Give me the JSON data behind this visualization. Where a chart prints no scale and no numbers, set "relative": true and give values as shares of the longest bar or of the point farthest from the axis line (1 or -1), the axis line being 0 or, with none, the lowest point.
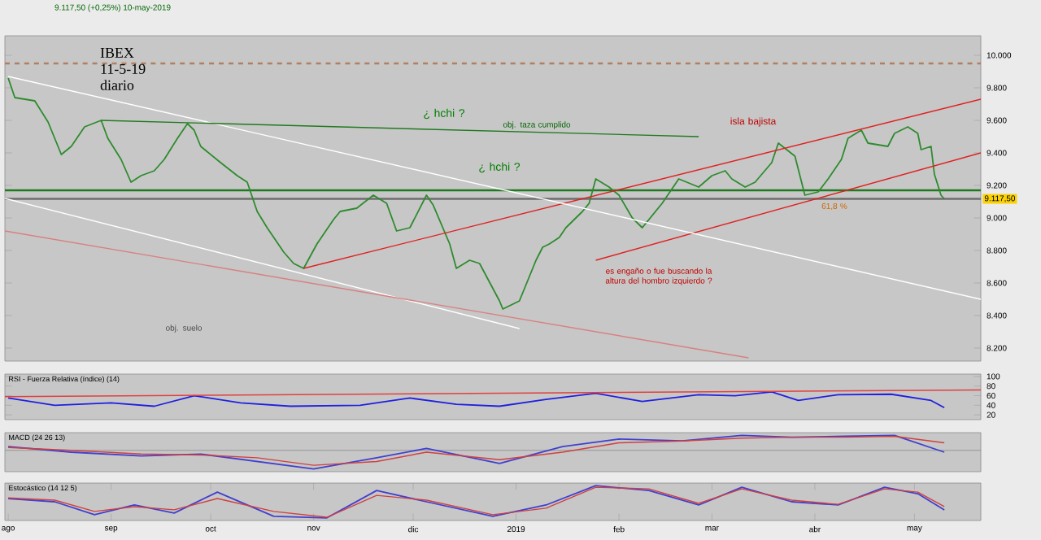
{
  "chart_data": [
    {
      "type": "line",
      "title": "IBEX",
      "subtitle": "11-5-19",
      "annotations": [
        "diario",
        "9.117,50 (+0,25%)  10-may-2019",
        "¿ hchi ?",
        "¿ hchi ?",
        "isla bajista",
        "obj. taza cumplido",
        "es engaño o fue buscando la altura del hombro izquierdo ?",
        "61,8 %",
        "obj. suelo"
      ],
      "x": [
        "2018-08-01",
        "2018-08-03",
        "2018-08-09",
        "2018-08-13",
        "2018-08-17",
        "2018-08-20",
        "2018-08-24",
        "2018-08-29",
        "2018-08-31",
        "2018-09-04",
        "2018-09-07",
        "2018-09-10",
        "2018-09-14",
        "2018-09-17",
        "2018-09-21",
        "2018-09-24",
        "2018-09-26",
        "2018-09-28",
        "2018-10-04",
        "2018-10-09",
        "2018-10-12",
        "2018-10-15",
        "2018-10-18",
        "2018-10-23",
        "2018-10-26",
        "2018-10-29",
        "2018-11-02",
        "2018-11-07",
        "2018-11-09",
        "2018-11-14",
        "2018-11-19",
        "2018-11-23",
        "2018-11-26",
        "2018-11-30",
        "2018-12-05",
        "2018-12-07",
        "2018-12-12",
        "2018-12-14",
        "2018-12-18",
        "2018-12-21",
        "2018-12-27",
        "2018-12-28",
        "2019-01-02",
        "2019-01-03",
        "2019-01-07",
        "2019-01-09",
        "2019-01-11",
        "2019-01-14",
        "2019-01-16",
        "2019-01-21",
        "2019-01-23",
        "2019-01-25",
        "2019-01-29",
        "2019-02-01",
        "2019-02-05",
        "2019-02-08",
        "2019-02-12",
        "2019-02-14",
        "2019-02-19",
        "2019-02-25",
        "2019-03-01",
        "2019-03-05",
        "2019-03-07",
        "2019-03-11",
        "2019-03-14",
        "2019-03-19",
        "2019-03-21",
        "2019-03-26",
        "2019-03-29",
        "2019-04-02",
        "2019-04-05",
        "2019-04-09",
        "2019-04-11",
        "2019-04-15",
        "2019-04-17",
        "2019-04-23",
        "2019-04-25",
        "2019-04-29",
        "2019-05-02",
        "2019-05-03",
        "2019-05-06",
        "2019-05-07",
        "2019-05-09",
        "2019-05-10"
      ],
      "series": [
        {
          "color": "#2e8b2e",
          "values": [
            9860,
            9740,
            9720,
            9590,
            9390,
            9440,
            9560,
            9600,
            9490,
            9360,
            9220,
            9260,
            9290,
            9360,
            9490,
            9580,
            9540,
            9440,
            9340,
            9260,
            9220,
            9040,
            8940,
            8790,
            8720,
            8690,
            8840,
            8990,
            9040,
            9060,
            9140,
            9090,
            8920,
            8940,
            9140,
            9080,
            8840,
            8690,
            8740,
            8720,
            8490,
            8440,
            8490,
            8540,
            8740,
            8820,
            8840,
            8880,
            8940,
            9040,
            9090,
            9240,
            9190,
            9140,
            9000,
            8940,
            9040,
            9090,
            9240,
            9190,
            9260,
            9290,
            9240,
            9190,
            9220,
            9340,
            9460,
            9380,
            9140,
            9160,
            9240,
            9360,
            9490,
            9540,
            9460,
            9440,
            9520,
            9560,
            9520,
            9420,
            9440,
            9270,
            9140,
            9117.5
          ]
        },
        {
          "color": "#e02020",
          "x": [
            "2018-10-29",
            "2019-05-21"
          ],
          "values": [
            8690,
            9730
          ]
        },
        {
          "color": "#e02020",
          "x": [
            "2019-01-25",
            "2019-05-21"
          ],
          "values": [
            8740,
            9400
          ]
        },
        {
          "color": "#ffffff",
          "x": [
            "2018-08-01",
            "2019-05-21"
          ],
          "values": [
            9870,
            8500
          ]
        },
        {
          "color": "#ffffff",
          "x": [
            "2018-07-31",
            "2019-01-02"
          ],
          "values": [
            9120,
            8320
          ]
        },
        {
          "color": "#d98080",
          "x": [
            "2018-07-31",
            "2019-03-12"
          ],
          "values": [
            8920,
            8140
          ]
        },
        {
          "color": "#1f7a1f",
          "x": [
            "2018-08-29",
            "2019-02-25"
          ],
          "values": [
            9600,
            9500
          ]
        }
      ],
      "ref_lines": [
        {
          "axis": "y",
          "value": 9170,
          "label": null,
          "color": "#1f7a1f"
        },
        {
          "axis": "y",
          "value": 9117.5,
          "label": "9.117,50",
          "color": "#6e6e6e"
        },
        {
          "axis": "y",
          "value": 9950,
          "label": null,
          "color": "#b08060",
          "line_style": "dashed"
        }
      ],
      "xlim": [
        "2018-07-31",
        "2019-05-21"
      ],
      "ylim": [
        8120,
        10120
      ],
      "yticks": [
        {
          "value": 8200,
          "label": "8.200"
        },
        {
          "value": 8400,
          "label": "8.400"
        },
        {
          "value": 8600,
          "label": "8.600"
        },
        {
          "value": 8800,
          "label": "8.800"
        },
        {
          "value": 9000,
          "label": "9.000"
        },
        {
          "value": 9200,
          "label": "9.200"
        },
        {
          "value": 9400,
          "label": "9.400"
        },
        {
          "value": 9600,
          "label": "9.600"
        },
        {
          "value": 9800,
          "label": "9.800"
        },
        {
          "value": 10000,
          "label": "10.000"
        }
      ],
      "tick_labels": "y"
    },
    {
      "type": "line",
      "title": "RSI - Fuerza Relativa (índice) (14)",
      "x": [
        "2018-08-01",
        "2018-08-15",
        "2018-09-01",
        "2018-09-14",
        "2018-09-26",
        "2018-10-10",
        "2018-10-25",
        "2018-11-15",
        "2018-11-30",
        "2018-12-14",
        "2018-12-27",
        "2019-01-10",
        "2019-01-25",
        "2019-02-08",
        "2019-02-25",
        "2019-03-08",
        "2019-03-19",
        "2019-03-27",
        "2019-04-08",
        "2019-04-24",
        "2019-05-06",
        "2019-05-10"
      ],
      "series": [
        {
          "color": "#2020e0",
          "values": [
            55,
            40,
            45,
            38,
            60,
            45,
            38,
            40,
            55,
            42,
            38,
            52,
            65,
            48,
            62,
            60,
            68,
            50,
            62,
            63,
            50,
            35
          ]
        },
        {
          "color": "#e04040",
          "x": [
            "2018-07-31",
            "2019-05-21"
          ],
          "values": [
            58,
            72
          ]
        }
      ],
      "xlim": [
        "2018-07-31",
        "2019-05-21"
      ],
      "ylim": [
        10,
        105
      ],
      "yticks": [
        20,
        40,
        60,
        80,
        100
      ],
      "tick_labels": "y"
    },
    {
      "type": "line",
      "title": "MACD (24 26 13)",
      "relative": true,
      "x": [
        "2018-08-01",
        "2018-08-20",
        "2018-09-10",
        "2018-09-28",
        "2018-10-15",
        "2018-11-01",
        "2018-11-20",
        "2018-12-05",
        "2018-12-27",
        "2019-01-15",
        "2019-02-01",
        "2019-02-20",
        "2019-03-10",
        "2019-03-25",
        "2019-04-10",
        "2019-04-25",
        "2019-05-10"
      ],
      "series": [
        {
          "color": "#4040d0",
          "values": [
            0.2,
            -0.1,
            -0.3,
            -0.2,
            -0.6,
            -1,
            -0.4,
            0.1,
            -0.7,
            0.2,
            0.6,
            0.5,
            0.8,
            0.7,
            0.75,
            0.8,
            -0.1
          ]
        },
        {
          "color": "#d04040",
          "values": [
            0.15,
            0.0,
            -0.2,
            -0.25,
            -0.4,
            -0.8,
            -0.6,
            -0.1,
            -0.5,
            -0.1,
            0.4,
            0.5,
            0.65,
            0.7,
            0.7,
            0.75,
            0.4
          ]
        }
      ],
      "xlim": [
        "2018-07-31",
        "2019-05-21"
      ],
      "tick_labels": false
    },
    {
      "type": "line",
      "title": "Estocástico (14 12 5)",
      "relative": true,
      "x": [
        "2018-08-01",
        "2018-08-15",
        "2018-08-27",
        "2018-09-08",
        "2018-09-20",
        "2018-10-03",
        "2018-10-20",
        "2018-11-05",
        "2018-11-20",
        "2018-12-05",
        "2018-12-25",
        "2019-01-10",
        "2019-01-25",
        "2019-02-10",
        "2019-02-25",
        "2019-03-10",
        "2019-03-25",
        "2019-04-08",
        "2019-04-22",
        "2019-05-02",
        "2019-05-10"
      ],
      "series": [
        {
          "color": "#4040d0",
          "values": [
            0.6,
            0.5,
            0.1,
            0.4,
            0.15,
            0.8,
            0.05,
            0.0,
            0.85,
            0.5,
            0.05,
            0.4,
            1.0,
            0.85,
            0.4,
            0.95,
            0.5,
            0.4,
            0.95,
            0.75,
            0.25
          ]
        },
        {
          "color": "#d04040",
          "values": [
            0.62,
            0.55,
            0.2,
            0.35,
            0.25,
            0.6,
            0.2,
            0.02,
            0.7,
            0.55,
            0.1,
            0.3,
            0.95,
            0.9,
            0.45,
            0.9,
            0.55,
            0.42,
            0.9,
            0.8,
            0.35
          ]
        }
      ],
      "xlim": [
        "2018-07-31",
        "2019-05-21"
      ],
      "xticks": [
        {
          "value": "2018-08-01",
          "label": "ago"
        },
        {
          "value": "2018-09-01",
          "label": "sep"
        },
        {
          "value": "2018-10-01",
          "label": "oct"
        },
        {
          "value": "2018-11-01",
          "label": "nov"
        },
        {
          "value": "2018-12-01",
          "label": "dic"
        },
        {
          "value": "2019-01-01",
          "label": "2019"
        },
        {
          "value": "2019-02-01",
          "label": "feb"
        },
        {
          "value": "2019-03-01",
          "label": "mar"
        },
        {
          "value": "2019-04-01",
          "label": "abr"
        },
        {
          "value": "2019-05-01",
          "label": "may"
        }
      ],
      "tick_labels": "x"
    }
  ]
}
